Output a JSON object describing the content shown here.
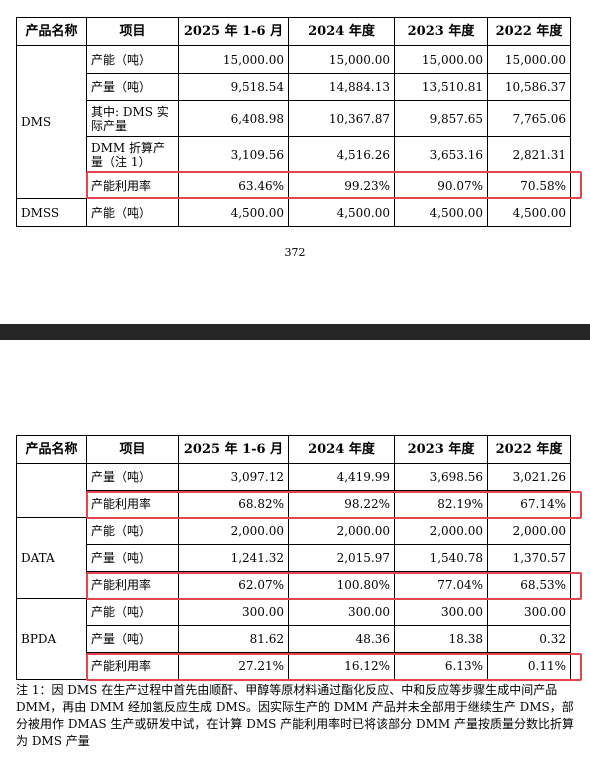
{
  "top_table": {
    "headers": [
      "产品名称",
      "项目",
      "2025 年 1-6 月",
      "2024 年度",
      "2023 年度",
      "2022 年度"
    ],
    "dms_label": "DMS",
    "dmss_label": "DMSS",
    "rows": [
      {
        "item": "产能（吨）",
        "v": [
          "15,000.00",
          "15,000.00",
          "15,000.00",
          "15,000.00"
        ]
      },
      {
        "item": "产量（吨）",
        "v": [
          "9,518.54",
          "14,884.13",
          "13,510.81",
          "10,586.37"
        ]
      },
      {
        "item_l1": "其中: DMS 实",
        "item_l2": "际产量",
        "v": [
          "6,408.98",
          "10,367.87",
          "9,857.65",
          "7,765.06"
        ]
      },
      {
        "item_l1": "DMM 折算产",
        "item_l2": "量（注 1）",
        "v": [
          "3,109.56",
          "4,516.26",
          "3,653.16",
          "2,821.31"
        ]
      },
      {
        "item": "产能利用率",
        "v": [
          "63.46%",
          "99.23%",
          "90.07%",
          "70.58%"
        ]
      },
      {
        "item": "产能（吨）",
        "v": [
          "4,500.00",
          "4,500.00",
          "4,500.00",
          "4,500.00"
        ]
      }
    ]
  },
  "page_number": "372",
  "bottom_table": {
    "headers": [
      "产品名称",
      "项目",
      "2025 年 1-6 月",
      "2024 年度",
      "2023 年度",
      "2022 年度"
    ],
    "data_label": "DATA",
    "bpda_label": "BPDA",
    "rows": [
      {
        "item": "产量（吨）",
        "v": [
          "3,097.12",
          "4,419.99",
          "3,698.56",
          "3,021.26"
        ]
      },
      {
        "item": "产能利用率",
        "v": [
          "68.82%",
          "98.22%",
          "82.19%",
          "67.14%"
        ]
      },
      {
        "item": "产能（吨）",
        "v": [
          "2,000.00",
          "2,000.00",
          "2,000.00",
          "2,000.00"
        ]
      },
      {
        "item": "产量（吨）",
        "v": [
          "1,241.32",
          "2,015.97",
          "1,540.78",
          "1,370.57"
        ]
      },
      {
        "item": "产能利用率",
        "v": [
          "62.07%",
          "100.80%",
          "77.04%",
          "68.53%"
        ]
      },
      {
        "item": "产能（吨）",
        "v": [
          "300.00",
          "300.00",
          "300.00",
          "300.00"
        ]
      },
      {
        "item": "产量（吨）",
        "v": [
          "81.62",
          "48.36",
          "18.38",
          "0.32"
        ]
      },
      {
        "item": "产能利用率",
        "v": [
          "27.21%",
          "16.12%",
          "6.13%",
          "0.11%"
        ]
      }
    ]
  },
  "footnote": "注 1：因 DMS 在生产过程中首先由顺酐、甲醇等原材料通过酯化反应、中和反应等步骤生成中间产品 DMM，再由 DMM 经加氢反应生成 DMS。因实际生产的 DMM 产品并未全部用于继续生产 DMS，部分被用作 DMAS 生产或研发中试，在计算 DMS 产能利用率时已将该部分 DMM 产量按质量分数比折算为 DMS 产量",
  "highlight_color": "#e4454f"
}
